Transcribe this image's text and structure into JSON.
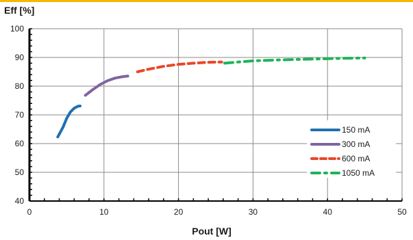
{
  "colors": {
    "top_band": "#f5b800",
    "grid": "#8a8a8a",
    "axis": "#000000"
  },
  "chart_data": {
    "type": "line",
    "ylabel": "Eff [%]",
    "xlabel": "Pout [W]",
    "xlim": [
      0,
      50
    ],
    "ylim": [
      40,
      100
    ],
    "x_ticks": [
      0,
      10,
      20,
      30,
      40,
      50
    ],
    "y_ticks": [
      40,
      50,
      60,
      70,
      80,
      90,
      100
    ],
    "grid": true,
    "legend_position": "right",
    "series": [
      {
        "name": "150 mA",
        "color": "#1f6fb2",
        "dash": "solid",
        "points": [
          [
            3.8,
            62.3
          ],
          [
            4.5,
            65.7
          ],
          [
            5.0,
            68.8
          ],
          [
            5.5,
            71.0
          ],
          [
            6.0,
            72.3
          ],
          [
            6.5,
            73.0
          ],
          [
            6.8,
            73.1
          ]
        ]
      },
      {
        "name": "300 mA",
        "color": "#8064a2",
        "dash": "solid",
        "points": [
          [
            7.5,
            76.8
          ],
          [
            8.5,
            78.8
          ],
          [
            9.5,
            80.6
          ],
          [
            10.5,
            81.9
          ],
          [
            11.5,
            82.8
          ],
          [
            12.5,
            83.3
          ],
          [
            13.2,
            83.5
          ]
        ]
      },
      {
        "name": "600 mA",
        "color": "#e8472a",
        "dash": "dashed",
        "points": [
          [
            14.5,
            85.0
          ],
          [
            16,
            85.9
          ],
          [
            18,
            86.9
          ],
          [
            20,
            87.6
          ],
          [
            22,
            88.0
          ],
          [
            24,
            88.3
          ],
          [
            25.8,
            88.4
          ]
        ]
      },
      {
        "name": "1050 mA",
        "color": "#1fb35a",
        "dash": "dashdot",
        "points": [
          [
            26.2,
            88.0
          ],
          [
            28,
            88.4
          ],
          [
            30,
            88.8
          ],
          [
            33,
            89.1
          ],
          [
            36,
            89.3
          ],
          [
            39,
            89.5
          ],
          [
            42,
            89.7
          ],
          [
            45,
            89.8
          ]
        ]
      }
    ]
  }
}
